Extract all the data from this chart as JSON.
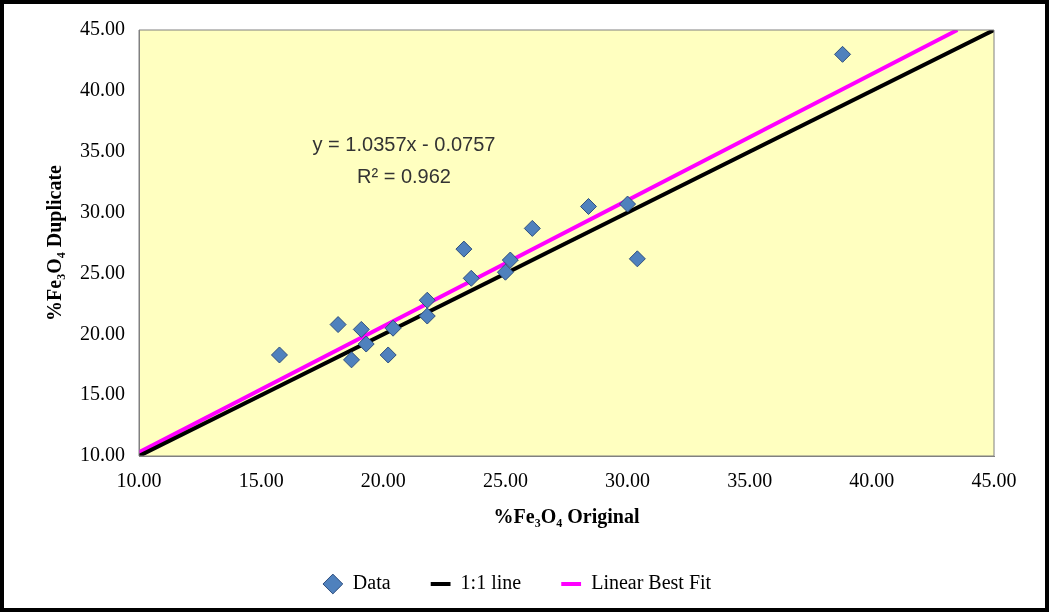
{
  "chart_data": {
    "type": "scatter",
    "xlabel": "%Fe₃O₄ Original",
    "ylabel": "%Fe₃O₄ Duplicate",
    "annotations": [
      "y = 1.0357x - 0.0757",
      "R² = 0.962"
    ],
    "xlim": [
      10,
      45
    ],
    "ylim": [
      10,
      45
    ],
    "xticks": [
      {
        "value": 10,
        "label": "10.00"
      },
      {
        "value": 15,
        "label": "15.00"
      },
      {
        "value": 20,
        "label": "20.00"
      },
      {
        "value": 25,
        "label": "25.00"
      },
      {
        "value": 30,
        "label": "30.00"
      },
      {
        "value": 35,
        "label": "35.00"
      },
      {
        "value": 40,
        "label": "40.00"
      },
      {
        "value": 45,
        "label": "45.00"
      }
    ],
    "yticks": [
      {
        "value": 10,
        "label": "10.00"
      },
      {
        "value": 15,
        "label": "15.00"
      },
      {
        "value": 20,
        "label": "20.00"
      },
      {
        "value": 25,
        "label": "25.00"
      },
      {
        "value": 30,
        "label": "30.00"
      },
      {
        "value": 35,
        "label": "35.00"
      },
      {
        "value": 40,
        "label": "40.00"
      },
      {
        "value": 45,
        "label": "45.00"
      }
    ],
    "legend": "bottom",
    "series": [
      {
        "name": "Data",
        "type": "scatter",
        "marker": "diamond",
        "color": "#4f81bd",
        "x": [
          15.75,
          18.15,
          18.7,
          19.1,
          19.3,
          20.2,
          20.4,
          21.8,
          21.8,
          23.3,
          23.6,
          25.0,
          25.2,
          26.1,
          28.4,
          30.0,
          30.4,
          38.8
        ],
        "values": [
          18.3,
          20.8,
          17.9,
          20.4,
          19.2,
          18.3,
          20.5,
          22.8,
          21.5,
          27.0,
          24.6,
          25.1,
          26.1,
          28.7,
          30.5,
          30.7,
          26.2,
          43.0
        ]
      },
      {
        "name": "1:1 line",
        "type": "line",
        "marker": "none",
        "color": "#000000",
        "x": [
          10,
          45
        ],
        "values": [
          10,
          45
        ]
      },
      {
        "name": "Linear Best Fit",
        "type": "line",
        "marker": "none",
        "color": "#ff00ff",
        "x": [
          10,
          43.5
        ],
        "values": [
          10.3,
          45
        ]
      }
    ]
  }
}
